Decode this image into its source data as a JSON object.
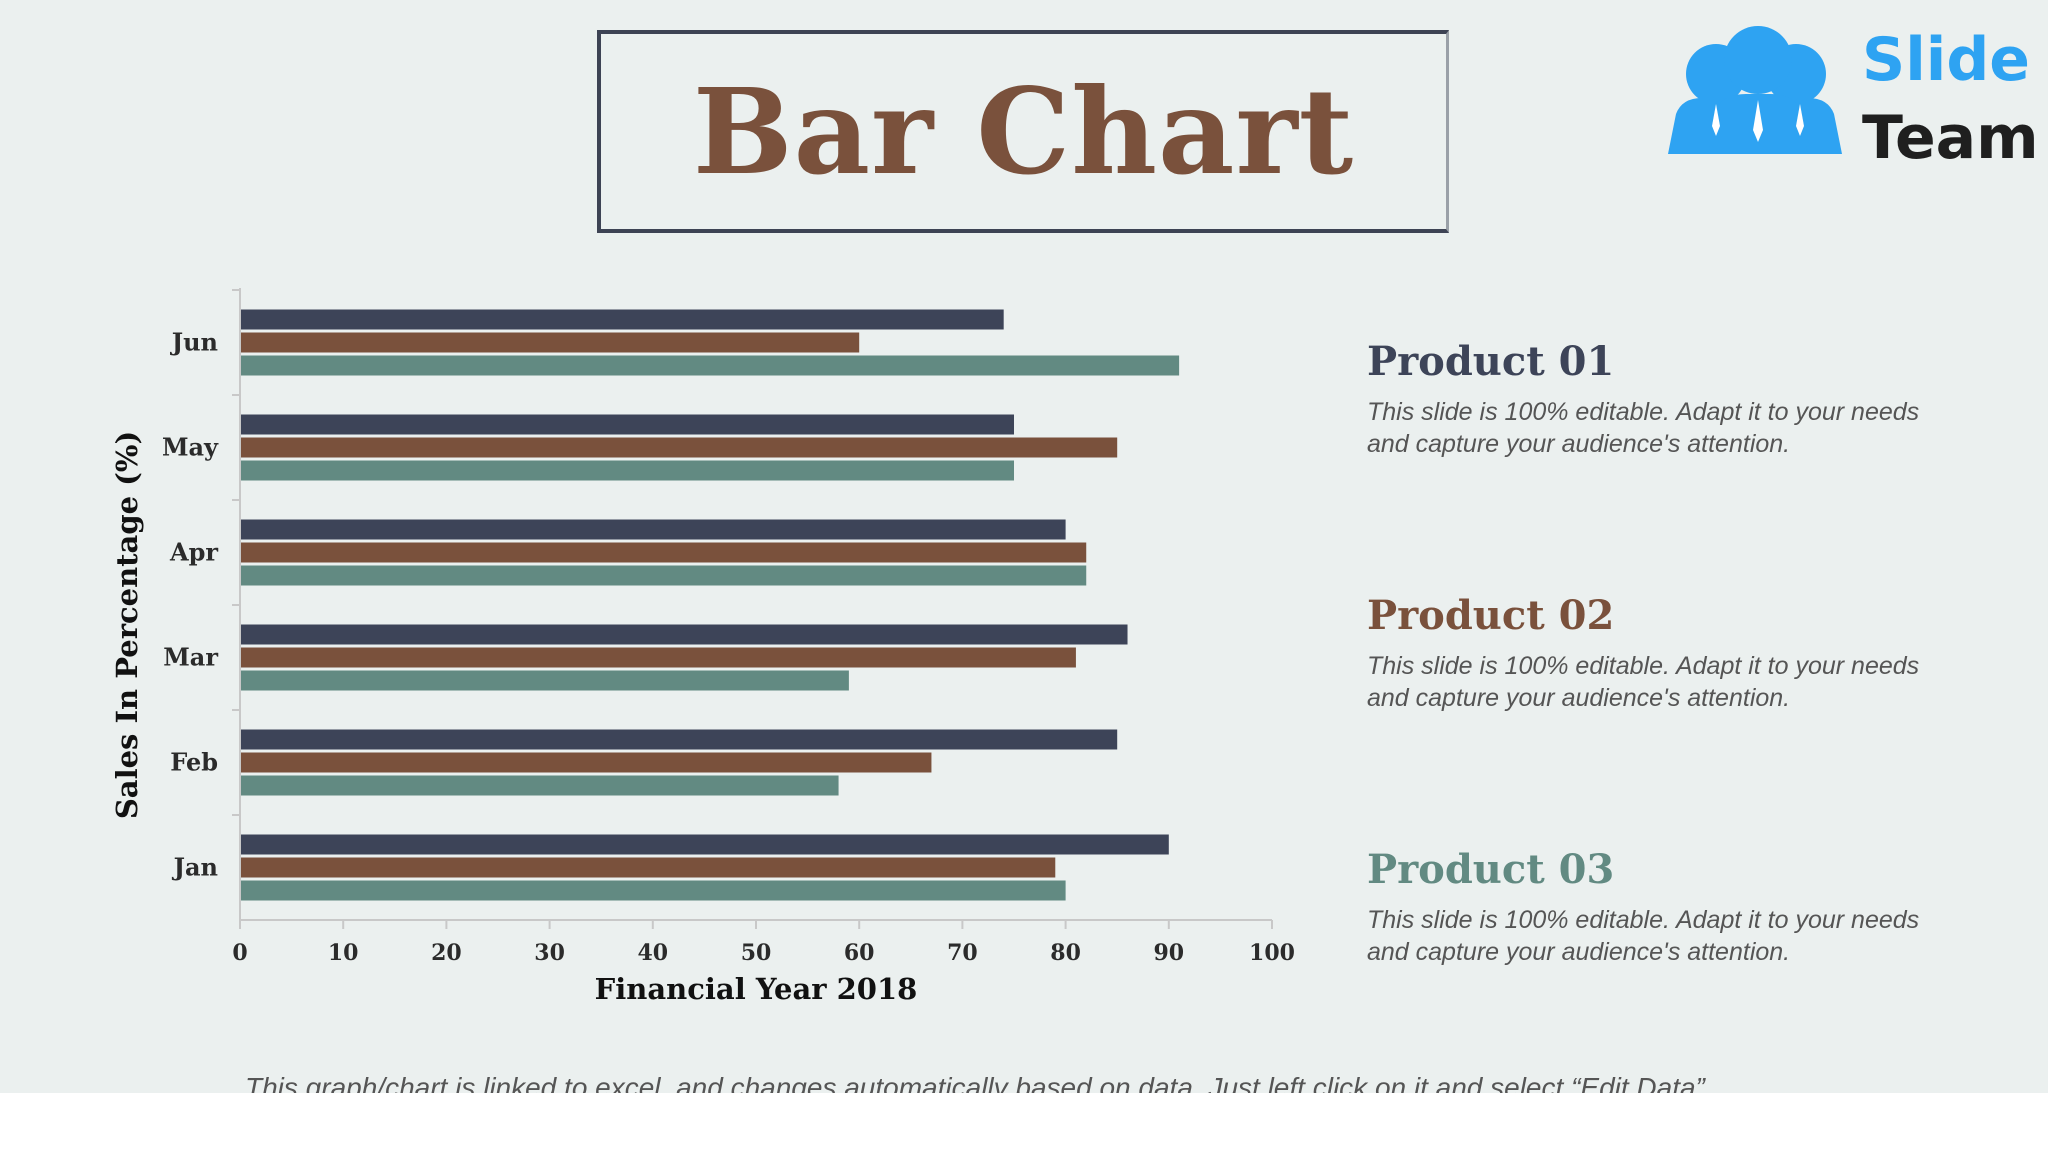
{
  "title": "Bar Chart",
  "logo": {
    "line1": "Slide",
    "line2": "Team"
  },
  "chart_data": {
    "type": "bar",
    "orientation": "horizontal",
    "categories": [
      "Jan",
      "Feb",
      "Mar",
      "Apr",
      "May",
      "Jun"
    ],
    "series": [
      {
        "name": "Product 01",
        "color": "#3d4458",
        "values": [
          90,
          85,
          86,
          80,
          75,
          74
        ]
      },
      {
        "name": "Product 02",
        "color": "#7a513c",
        "values": [
          79,
          67,
          81,
          82,
          85,
          60
        ]
      },
      {
        "name": "Product 03",
        "color": "#628a82",
        "values": [
          80,
          58,
          59,
          82,
          75,
          91
        ]
      }
    ],
    "xlim": [
      0,
      100
    ],
    "xticks": [
      "0",
      "10",
      "20",
      "30",
      "40",
      "50",
      "60",
      "70",
      "80",
      "90",
      "100"
    ],
    "xlabel": "Financial Year 2018",
    "ylabel": "Sales In Percentage (%)",
    "grid": false,
    "legend_placement": "right"
  },
  "legend": [
    {
      "name": "Product 01",
      "color": "#3d4458",
      "description": "This slide is 100% editable. Adapt it to your needs and capture your audience's attention."
    },
    {
      "name": "Product 02",
      "color": "#7a513c",
      "description": "This slide is 100% editable. Adapt it to your needs and capture your audience's attention."
    },
    {
      "name": "Product 03",
      "color": "#628a82",
      "description": "This slide is 100% editable. Adapt it to your needs and capture your audience's attention."
    }
  ],
  "footnote": "This graph/chart is linked to excel, and changes automatically based on data. Just left click on it and select “Edit Data”."
}
